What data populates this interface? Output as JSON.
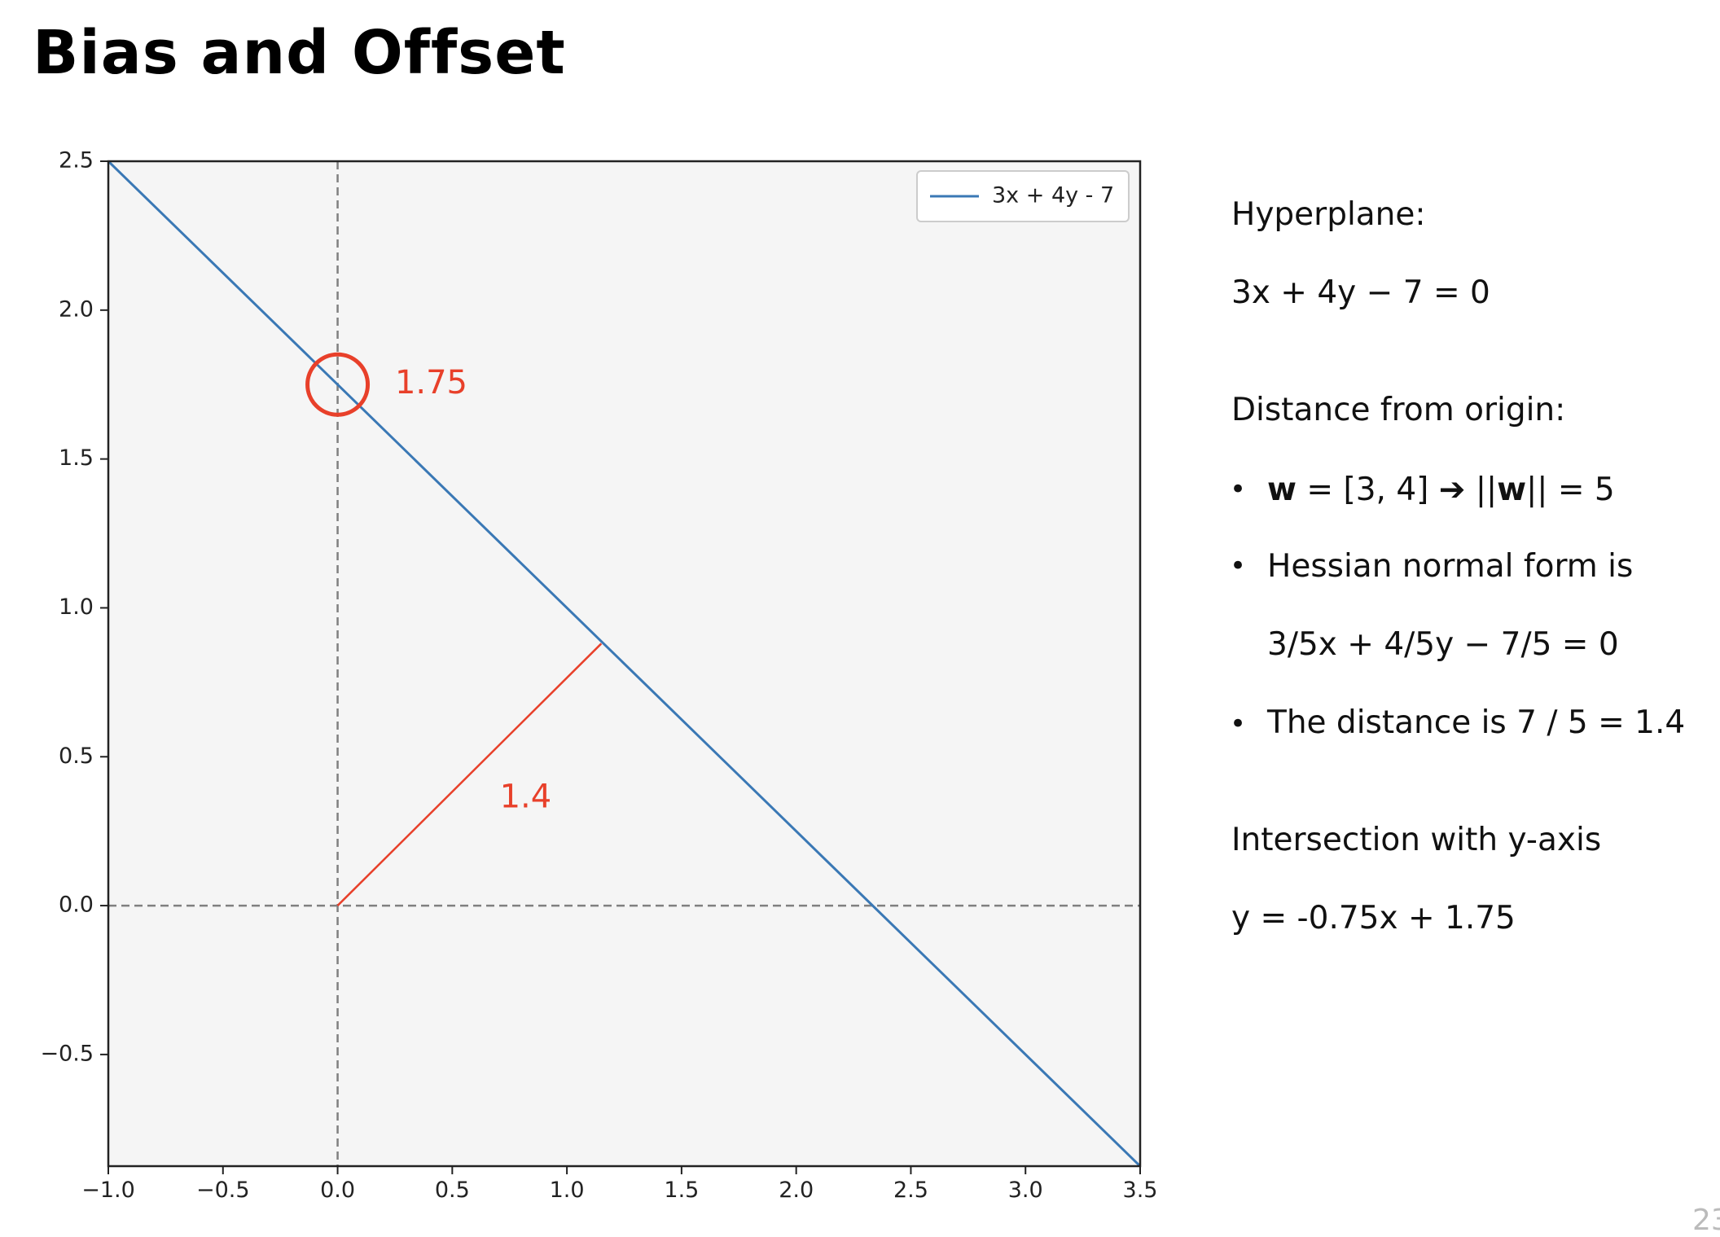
{
  "slide": {
    "title": "Bias and Offset",
    "page_number": "23"
  },
  "chart_data": {
    "type": "line",
    "title": "",
    "xlabel": "",
    "ylabel": "",
    "xlim": [
      -1.0,
      3.5
    ],
    "ylim": [
      -0.875,
      2.5
    ],
    "x_ticks": [
      "−1.0",
      "−0.5",
      "0.0",
      "0.5",
      "1.0",
      "1.5",
      "2.0",
      "2.5",
      "3.0",
      "3.5"
    ],
    "x_tick_values": [
      -1.0,
      -0.5,
      0.0,
      0.5,
      1.0,
      1.5,
      2.0,
      2.5,
      3.0,
      3.5
    ],
    "y_ticks": [
      "−0.5",
      "0.0",
      "0.5",
      "1.0",
      "1.5",
      "2.0",
      "2.5"
    ],
    "y_tick_values": [
      -0.5,
      0.0,
      0.5,
      1.0,
      1.5,
      2.0,
      2.5
    ],
    "grid": false,
    "legend_position": "top-right",
    "series": [
      {
        "name": "3x + 4y - 7",
        "color": "#3a78b5",
        "x": [
          -1.0,
          3.5
        ],
        "y": [
          2.5,
          -0.875
        ]
      }
    ],
    "reference_lines": [
      {
        "orientation": "vertical",
        "value": 0.0,
        "style": "dashed",
        "color": "#808080"
      },
      {
        "orientation": "horizontal",
        "value": 0.0,
        "style": "dashed",
        "color": "#808080"
      }
    ],
    "annotations": [
      {
        "type": "segment",
        "label": "1.4",
        "color": "#e8402a",
        "x": [
          0.0,
          1.15
        ],
        "y": [
          0.0,
          0.88
        ],
        "label_x": 0.82,
        "label_y": 0.36
      },
      {
        "type": "circle",
        "label": "1.75",
        "color": "#e8402a",
        "x": 0.0,
        "y": 1.75,
        "label_x": 0.25,
        "label_y": 1.75
      }
    ]
  },
  "sidebar": {
    "hyperplane_heading": "Hyperplane:",
    "hyperplane_equation": "3x + 4y − 7 = 0",
    "distance_heading": "Distance from origin:",
    "bullet1_w": "w",
    "bullet1_mid": " = [3, 4] ➔ ||",
    "bullet1_w2": "w",
    "bullet1_end": "|| = 5",
    "bullet2": "Hessian normal form is",
    "bullet2_formula": "3/5x + 4/5y − 7/5 = 0",
    "bullet3": "The distance is 7 / 5 = 1.4",
    "intersection_heading": "Intersection with y-axis",
    "intersection_equation": "y = -0.75x + 1.75"
  },
  "colors": {
    "plot_background": "#f5f5f5",
    "axes": "#222222",
    "line": "#3a78b5",
    "annotation": "#e8402a",
    "reference": "#808080"
  }
}
